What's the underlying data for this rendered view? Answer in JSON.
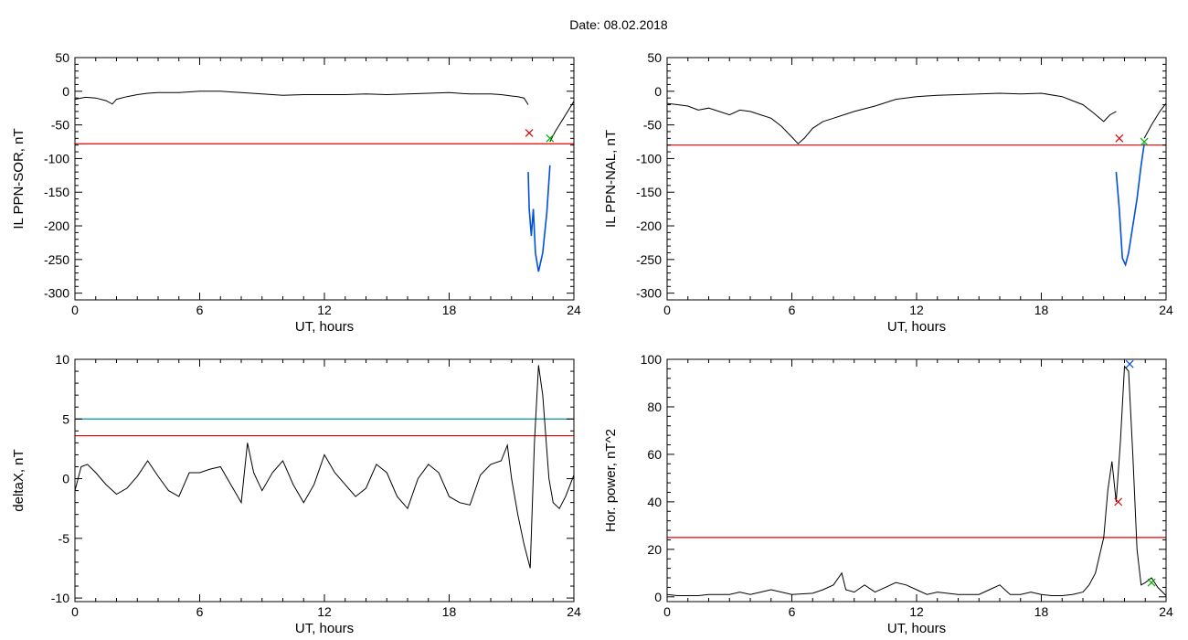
{
  "header": {
    "date_label": "Date:",
    "date_value": "08.02.2018"
  },
  "chart_data": [
    {
      "id": "sor",
      "type": "line",
      "xlabel": "UT, hours",
      "ylabel": "IL PPN-SOR, nT",
      "xlim": [
        0,
        24
      ],
      "ylim": [
        -310,
        50
      ],
      "xticks": [
        0,
        6,
        12,
        18,
        24
      ],
      "yticks": [
        50,
        0,
        -50,
        -100,
        -150,
        -200,
        -250,
        -300
      ],
      "series": [
        {
          "color": "#000000",
          "x": [
            0,
            0.5,
            1,
            1.5,
            1.8,
            2,
            2.5,
            3,
            3.5,
            4,
            5,
            6,
            7,
            8,
            9,
            10,
            11,
            12,
            13,
            14,
            15,
            16,
            17,
            18,
            19,
            20,
            20.5,
            21,
            21.3,
            21.6,
            21.8
          ],
          "y": [
            -12,
            -9,
            -10,
            -14,
            -19,
            -12,
            -8,
            -5,
            -3,
            -2,
            -2,
            0,
            0,
            -2,
            -4,
            -6,
            -5,
            -5,
            -5,
            -4,
            -5,
            -4,
            -3,
            -2,
            -4,
            -4,
            -5,
            -7,
            -8,
            -10,
            -20
          ]
        },
        {
          "color": "#0050e0",
          "x": [
            21.8,
            21.85,
            21.95,
            22.05,
            22.15,
            22.3,
            22.5,
            22.7,
            22.85
          ],
          "y": [
            -120,
            -175,
            -215,
            -175,
            -240,
            -268,
            -240,
            -180,
            -110
          ]
        },
        {
          "color": "#000000",
          "x": [
            22.85,
            23.1,
            23.5,
            23.8,
            24
          ],
          "y": [
            -75,
            -60,
            -40,
            -25,
            -15
          ]
        }
      ],
      "thresholds": [
        {
          "y": -78,
          "color": "#e00000"
        }
      ],
      "markers": [
        {
          "x": 21.85,
          "y": -62,
          "color": "#e00000"
        },
        {
          "x": 22.85,
          "y": -70,
          "color": "#00b000"
        }
      ]
    },
    {
      "id": "nal",
      "type": "line",
      "xlabel": "UT, hours",
      "ylabel": "IL PPN-NAL, nT",
      "xlim": [
        0,
        24
      ],
      "ylim": [
        -310,
        50
      ],
      "xticks": [
        0,
        6,
        12,
        18,
        24
      ],
      "yticks": [
        50,
        0,
        -50,
        -100,
        -150,
        -200,
        -250,
        -300
      ],
      "series": [
        {
          "color": "#000000",
          "x": [
            0,
            0.5,
            1,
            1.5,
            2,
            2.5,
            3,
            3.5,
            4,
            4.5,
            5,
            5.5,
            6,
            6.3,
            6.6,
            7,
            7.5,
            8,
            9,
            10,
            11,
            12,
            13,
            14,
            15,
            16,
            17,
            18,
            19,
            19.5,
            20,
            20.5,
            21,
            21.3,
            21.6
          ],
          "y": [
            -18,
            -20,
            -22,
            -28,
            -25,
            -30,
            -35,
            -28,
            -30,
            -35,
            -40,
            -52,
            -68,
            -78,
            -70,
            -55,
            -45,
            -40,
            -30,
            -22,
            -12,
            -8,
            -6,
            -5,
            -4,
            -3,
            -4,
            -3,
            -8,
            -14,
            -20,
            -32,
            -45,
            -35,
            -30
          ]
        },
        {
          "color": "#0050e0",
          "x": [
            21.6,
            21.75,
            21.9,
            22.05,
            22.2,
            22.4,
            22.6,
            22.8,
            22.95
          ],
          "y": [
            -120,
            -175,
            -248,
            -258,
            -240,
            -200,
            -160,
            -110,
            -78
          ]
        },
        {
          "color": "#000000",
          "x": [
            22.95,
            23.3,
            23.7,
            24
          ],
          "y": [
            -70,
            -50,
            -30,
            -18
          ]
        }
      ],
      "thresholds": [
        {
          "y": -80,
          "color": "#e00000"
        }
      ],
      "markers": [
        {
          "x": 21.75,
          "y": -70,
          "color": "#e00000"
        },
        {
          "x": 22.95,
          "y": -75,
          "color": "#00b000"
        }
      ]
    },
    {
      "id": "deltax",
      "type": "line",
      "xlabel": "UT, hours",
      "ylabel": "deltaX, nT",
      "xlim": [
        0,
        24
      ],
      "ylim": [
        -10.3,
        10
      ],
      "xticks": [
        0,
        6,
        12,
        18,
        24
      ],
      "yticks": [
        10,
        5,
        0,
        -5,
        -10
      ],
      "series": [
        {
          "color": "#000000",
          "x": [
            0,
            0.3,
            0.6,
            1,
            1.5,
            2,
            2.5,
            3,
            3.5,
            4,
            4.5,
            5,
            5.5,
            6,
            6.5,
            7,
            7.5,
            8,
            8.3,
            8.6,
            9,
            9.5,
            10,
            10.5,
            11,
            11.5,
            12,
            12.5,
            13,
            13.5,
            14,
            14.5,
            15,
            15.5,
            16,
            16.5,
            17,
            17.5,
            18,
            18.5,
            19,
            19.5,
            20,
            20.5,
            20.8,
            21,
            21.3,
            21.6,
            21.9,
            22.1,
            22.3,
            22.5,
            22.8,
            23,
            23.3,
            23.6,
            24
          ],
          "y": [
            -1,
            1,
            1.2,
            0.5,
            -0.5,
            -1.3,
            -0.8,
            0.2,
            1.5,
            0.2,
            -1,
            -1.5,
            0.5,
            0.5,
            0.8,
            1,
            -0.5,
            -2,
            3,
            0.5,
            -1,
            0.5,
            1.5,
            -0.5,
            -2,
            -0.5,
            2,
            0.5,
            -0.5,
            -1.5,
            -0.8,
            1.2,
            0.5,
            -1.5,
            -2.5,
            0,
            1.2,
            0.5,
            -1.5,
            -2,
            -2.2,
            0.3,
            1.2,
            1.5,
            2.8,
            0,
            -3,
            -5.5,
            -7.5,
            3,
            9.5,
            7,
            0,
            -2,
            -2.5,
            -1.5,
            0.3
          ]
        }
      ],
      "thresholds": [
        {
          "y": 5,
          "color": "#0090a0"
        },
        {
          "y": 3.6,
          "color": "#e00000"
        }
      ],
      "markers": []
    },
    {
      "id": "power",
      "type": "line",
      "xlabel": "UT, hours",
      "ylabel": "Hor. power, nT^2",
      "xlim": [
        0,
        24
      ],
      "ylim": [
        -2,
        100
      ],
      "xticks": [
        0,
        6,
        12,
        18,
        24
      ],
      "yticks": [
        100,
        80,
        60,
        40,
        20,
        0
      ],
      "series": [
        {
          "color": "#000000",
          "x": [
            0,
            0.5,
            1,
            1.5,
            2,
            3,
            3.5,
            4,
            4.5,
            5,
            6,
            7,
            7.5,
            8,
            8.4,
            8.6,
            9,
            9.5,
            10,
            10.5,
            11,
            11.5,
            12,
            12.5,
            13,
            14,
            15,
            15.5,
            16,
            16.5,
            17,
            17.5,
            18,
            18.5,
            19,
            19.5,
            20,
            20.3,
            20.6,
            21,
            21.2,
            21.4,
            21.6,
            21.8,
            22,
            22.2,
            22.4,
            22.6,
            22.8,
            23,
            23.3,
            23.6,
            24
          ],
          "y": [
            1,
            0.5,
            0.5,
            0.5,
            1,
            1,
            2,
            1,
            2,
            3,
            1,
            1.5,
            3,
            5,
            10,
            3,
            2,
            5,
            2,
            4,
            6,
            5,
            3,
            1,
            2,
            1,
            1,
            3,
            5,
            1,
            1,
            2,
            1,
            0.5,
            0.5,
            1,
            2,
            5,
            10,
            25,
            45,
            57,
            40,
            65,
            97,
            95,
            60,
            20,
            5,
            6,
            8,
            4,
            0.5
          ]
        }
      ],
      "thresholds": [
        {
          "y": 25,
          "color": "#e00000"
        }
      ],
      "markers": [
        {
          "x": 21.7,
          "y": 40,
          "color": "#e00000"
        },
        {
          "x": 22.25,
          "y": 98,
          "color": "#0050e0"
        },
        {
          "x": 23.3,
          "y": 6,
          "color": "#00b000"
        }
      ]
    }
  ]
}
